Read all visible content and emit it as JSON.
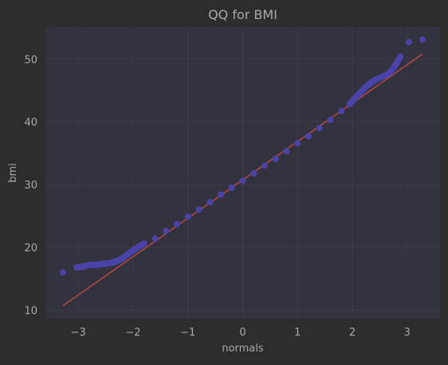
{
  "chart_data": {
    "type": "scatter",
    "title": "QQ for BMI",
    "xlabel": "normals",
    "ylabel": "bmi",
    "xlim": [
      -3.6,
      3.6
    ],
    "ylim": [
      8.6,
      55.1
    ],
    "x_ticks": [
      -3,
      -2,
      -1,
      0,
      1,
      2,
      3
    ],
    "x_tick_labels": [
      "−3",
      "−2",
      "−1",
      "0",
      "1",
      "2",
      "3"
    ],
    "y_ticks": [
      10,
      20,
      30,
      40,
      50
    ],
    "y_tick_labels": [
      "10",
      "20",
      "30",
      "40",
      "50"
    ],
    "grid": true,
    "colors": {
      "figure_bg": "#2d2d2d",
      "axes_bg": "#33323f",
      "grid": "#3c3b47",
      "points": "#4a43a8",
      "fit_line": "#b04848",
      "text": "#a9a9a9"
    },
    "series": [
      {
        "kind": "scatter",
        "points": [
          [
            -3.28,
            16.0
          ],
          [
            -3.03,
            16.8
          ],
          [
            -2.92,
            16.9
          ],
          [
            -2.84,
            17.1
          ],
          [
            -2.78,
            17.2
          ],
          [
            -2.7,
            17.2
          ],
          [
            -2.6,
            17.3
          ],
          [
            -2.5,
            17.4
          ],
          [
            -2.4,
            17.5
          ],
          [
            -2.3,
            17.8
          ],
          [
            -2.2,
            18.2
          ],
          [
            -2.1,
            18.9
          ],
          [
            -2.0,
            19.5
          ],
          [
            -1.9,
            20.1
          ],
          [
            -1.8,
            20.6
          ],
          [
            -1.6,
            21.4
          ],
          [
            -1.4,
            22.6
          ],
          [
            -1.2,
            23.7
          ],
          [
            -1.0,
            24.9
          ],
          [
            -0.8,
            26.0
          ],
          [
            -0.6,
            27.2
          ],
          [
            -0.4,
            28.4
          ],
          [
            -0.2,
            29.5
          ],
          [
            0.0,
            30.6
          ],
          [
            0.2,
            31.8
          ],
          [
            0.4,
            33.0
          ],
          [
            0.6,
            34.1
          ],
          [
            0.8,
            35.3
          ],
          [
            1.0,
            36.6
          ],
          [
            1.2,
            37.7
          ],
          [
            1.4,
            39.0
          ],
          [
            1.6,
            40.3
          ],
          [
            1.8,
            41.7
          ],
          [
            1.95,
            42.8
          ],
          [
            2.05,
            43.8
          ],
          [
            2.15,
            44.7
          ],
          [
            2.25,
            45.6
          ],
          [
            2.35,
            46.3
          ],
          [
            2.45,
            46.8
          ],
          [
            2.55,
            47.2
          ],
          [
            2.65,
            47.6
          ],
          [
            2.72,
            48.2
          ],
          [
            2.79,
            49.1
          ],
          [
            2.88,
            50.4
          ],
          [
            3.03,
            52.7
          ],
          [
            3.28,
            53.1
          ]
        ]
      },
      {
        "kind": "line",
        "points": [
          [
            -3.28,
            10.7
          ],
          [
            3.28,
            50.8
          ]
        ]
      }
    ]
  }
}
